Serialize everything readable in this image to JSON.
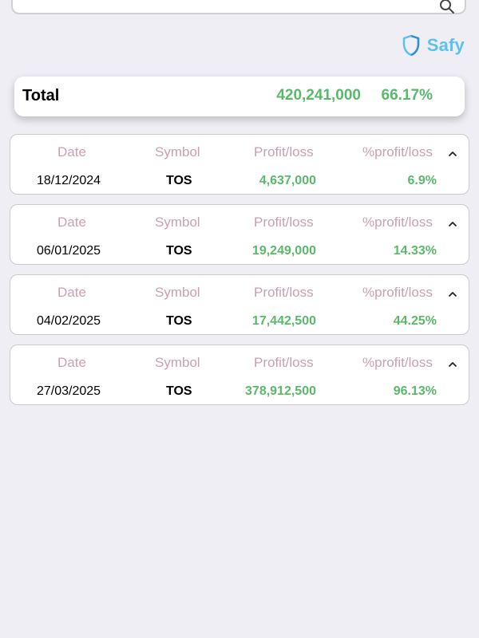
{
  "header": {
    "brand_name": "Safy",
    "brand_color": "#5bc2ee"
  },
  "summary": {
    "label": "Total",
    "profit_loss_total": "420,241,000",
    "profit_loss_pct_total": "66.17%"
  },
  "trades": [
    {
      "headers": {
        "date": "Date",
        "symbol": "Symbol",
        "profit_loss": "Profit/loss",
        "pct_profit_loss": "%profit/loss"
      },
      "date": "18/12/2024",
      "symbol": "TOS",
      "profit_loss": "4,637,000",
      "pct_profit_loss": "6.9%"
    },
    {
      "headers": {
        "date": "Date",
        "symbol": "Symbol",
        "profit_loss": "Profit/loss",
        "pct_profit_loss": "%profit/loss"
      },
      "date": "06/01/2025",
      "symbol": "TOS",
      "profit_loss": "19,249,000",
      "pct_profit_loss": "14.33%"
    },
    {
      "headers": {
        "date": "Date",
        "symbol": "Symbol",
        "profit_loss": "Profit/loss",
        "pct_profit_loss": "%profit/loss"
      },
      "date": "04/02/2025",
      "symbol": "TOS",
      "profit_loss": "17,442,500",
      "pct_profit_loss": "44.25%"
    },
    {
      "headers": {
        "date": "Date",
        "symbol": "Symbol",
        "profit_loss": "Profit/loss",
        "pct_profit_loss": "%profit/loss"
      },
      "date": "27/03/2025",
      "symbol": "TOS",
      "profit_loss": "378,912,500",
      "pct_profit_loss": "96.13%"
    }
  ],
  "colors": {
    "positive": "#5cb86b",
    "header_label": "#c8a0b3",
    "background": "#efeef5"
  },
  "icons": {
    "search": "search-icon",
    "brand_logo": "shield-logo-icon",
    "collapse": "chevron-up-icon"
  }
}
